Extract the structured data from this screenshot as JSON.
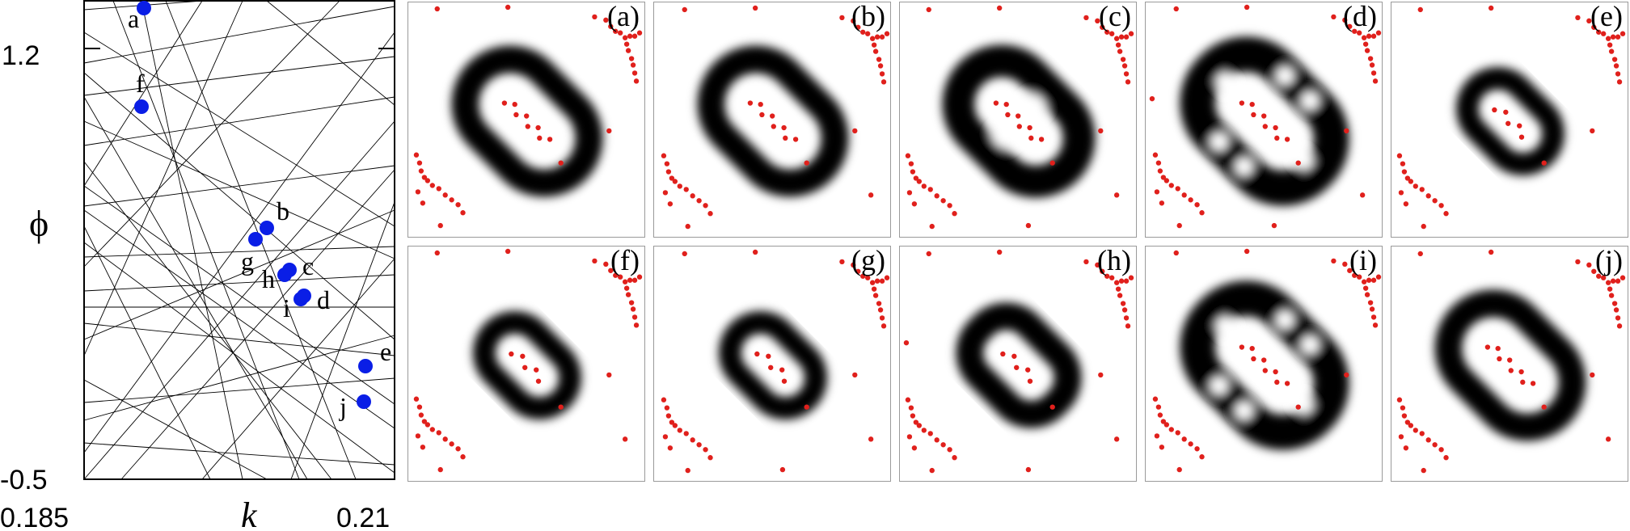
{
  "left_plot": {
    "xlabel": "k",
    "ylabel": "ϕ",
    "xticks": [
      "0.185",
      "0.21"
    ],
    "yticks": [
      "1.2",
      "-0.5"
    ],
    "xlim": [
      0.185,
      0.21
    ],
    "ylim": [
      -0.5,
      1.2
    ],
    "points": [
      {
        "label": "a"
      },
      {
        "label": "b"
      },
      {
        "label": "c"
      },
      {
        "label": "d"
      },
      {
        "label": "e"
      },
      {
        "label": "f"
      },
      {
        "label": "g"
      },
      {
        "label": "h"
      },
      {
        "label": "i"
      },
      {
        "label": "j"
      }
    ],
    "colors": {
      "points": "#0a1ee6",
      "lines": "#000000"
    }
  },
  "panels": [
    {
      "label": "(a)",
      "ring": "oval"
    },
    {
      "label": "(b)",
      "ring": "oval"
    },
    {
      "label": "(c)",
      "ring": "wavy"
    },
    {
      "label": "(d)",
      "ring": "broken"
    },
    {
      "label": "(e)",
      "ring": "small"
    },
    {
      "label": "(f)",
      "ring": "small"
    },
    {
      "label": "(g)",
      "ring": "small"
    },
    {
      "label": "(h)",
      "ring": "wavy-small"
    },
    {
      "label": "(i)",
      "ring": "broken"
    },
    {
      "label": "(j)",
      "ring": "oval"
    }
  ],
  "colors": {
    "vortex": "#e0201c",
    "density": "#000000"
  }
}
